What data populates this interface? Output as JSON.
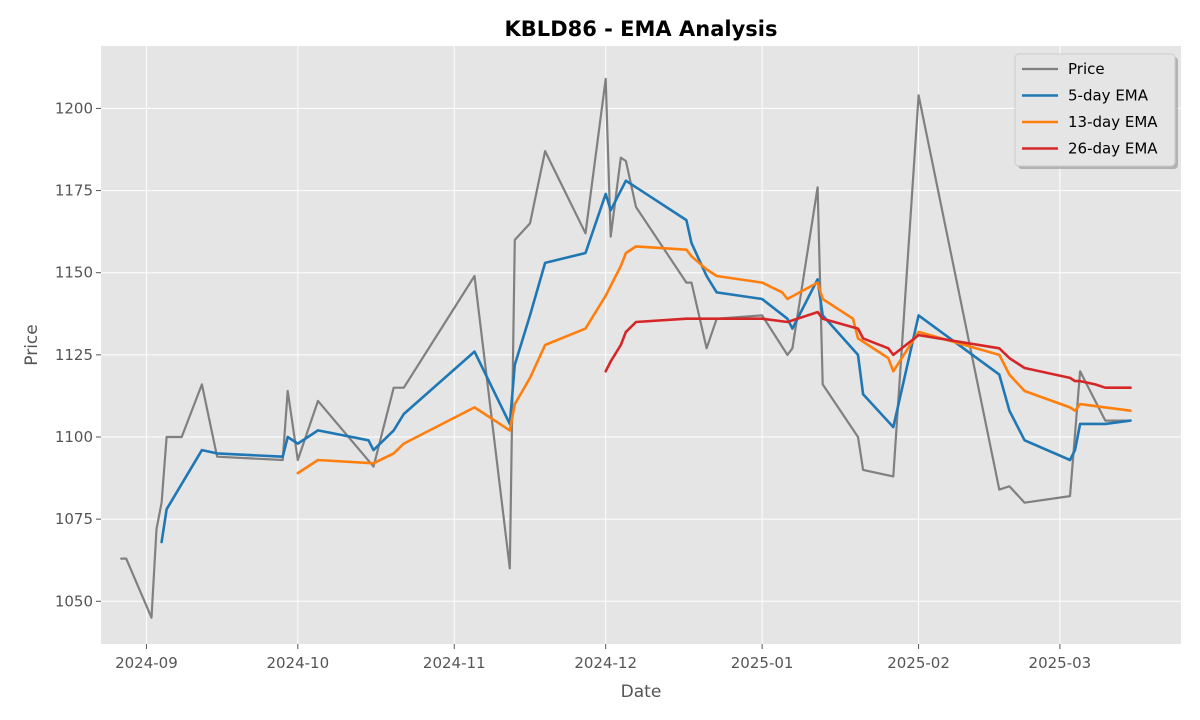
{
  "chart_data": {
    "type": "line",
    "title": "KBLD86 - EMA Analysis",
    "xlabel": "Date",
    "ylabel": "Price",
    "xlim": [
      "2024-08-23",
      "2025-03-25"
    ],
    "ylim": [
      1037,
      1219
    ],
    "x_ticks": [
      {
        "date": "2024-09-01",
        "label": "2024-09"
      },
      {
        "date": "2024-10-01",
        "label": "2024-10"
      },
      {
        "date": "2024-11-01",
        "label": "2024-11"
      },
      {
        "date": "2024-12-01",
        "label": "2024-12"
      },
      {
        "date": "2025-01-01",
        "label": "2025-01"
      },
      {
        "date": "2025-02-01",
        "label": "2025-02"
      },
      {
        "date": "2025-03-01",
        "label": "2025-03"
      }
    ],
    "y_ticks": [
      1050,
      1075,
      1100,
      1125,
      1150,
      1175,
      1200
    ],
    "grid": true,
    "legend_position": "top-right",
    "background": "#e5e5e5",
    "series": [
      {
        "name": "Price",
        "color": "#808080",
        "points": [
          [
            "2024-08-27",
            1063
          ],
          [
            "2024-08-28",
            1063
          ],
          [
            "2024-09-02",
            1045
          ],
          [
            "2024-09-03",
            1072
          ],
          [
            "2024-09-04",
            1080
          ],
          [
            "2024-09-05",
            1100
          ],
          [
            "2024-09-08",
            1100
          ],
          [
            "2024-09-12",
            1116
          ],
          [
            "2024-09-15",
            1094
          ],
          [
            "2024-09-28",
            1093
          ],
          [
            "2024-09-29",
            1114
          ],
          [
            "2024-10-01",
            1093
          ],
          [
            "2024-10-05",
            1111
          ],
          [
            "2024-10-16",
            1091
          ],
          [
            "2024-10-20",
            1115
          ],
          [
            "2024-10-22",
            1115
          ],
          [
            "2024-11-05",
            1149
          ],
          [
            "2024-11-12",
            1060
          ],
          [
            "2024-11-13",
            1160
          ],
          [
            "2024-11-16",
            1165
          ],
          [
            "2024-11-19",
            1187
          ],
          [
            "2024-11-27",
            1162
          ],
          [
            "2024-12-01",
            1209
          ],
          [
            "2024-12-02",
            1161
          ],
          [
            "2024-12-04",
            1185
          ],
          [
            "2024-12-05",
            1184
          ],
          [
            "2024-12-07",
            1170
          ],
          [
            "2024-12-17",
            1147
          ],
          [
            "2024-12-18",
            1147
          ],
          [
            "2024-12-21",
            1127
          ],
          [
            "2024-12-23",
            1136
          ],
          [
            "2025-01-01",
            1137
          ],
          [
            "2025-01-06",
            1125
          ],
          [
            "2025-01-07",
            1127
          ],
          [
            "2025-01-12",
            1176
          ],
          [
            "2025-01-13",
            1116
          ],
          [
            "2025-01-20",
            1100
          ],
          [
            "2025-01-21",
            1090
          ],
          [
            "2025-01-27",
            1088
          ],
          [
            "2025-02-01",
            1204
          ],
          [
            "2025-02-17",
            1084
          ],
          [
            "2025-02-19",
            1085
          ],
          [
            "2025-02-22",
            1080
          ],
          [
            "2025-03-03",
            1082
          ],
          [
            "2025-03-05",
            1120
          ],
          [
            "2025-03-10",
            1105
          ],
          [
            "2025-03-15",
            1105
          ]
        ]
      },
      {
        "name": "5-day EMA",
        "color": "#1f77b4",
        "points": [
          [
            "2024-09-04",
            1068
          ],
          [
            "2024-09-05",
            1078
          ],
          [
            "2024-09-12",
            1096
          ],
          [
            "2024-09-15",
            1095
          ],
          [
            "2024-09-28",
            1094
          ],
          [
            "2024-09-29",
            1100
          ],
          [
            "2024-10-01",
            1098
          ],
          [
            "2024-10-05",
            1102
          ],
          [
            "2024-10-15",
            1099
          ],
          [
            "2024-10-16",
            1096
          ],
          [
            "2024-10-20",
            1102
          ],
          [
            "2024-10-22",
            1107
          ],
          [
            "2024-11-05",
            1126
          ],
          [
            "2024-11-12",
            1104
          ],
          [
            "2024-11-13",
            1122
          ],
          [
            "2024-11-16",
            1137
          ],
          [
            "2024-11-19",
            1153
          ],
          [
            "2024-11-27",
            1156
          ],
          [
            "2024-12-01",
            1174
          ],
          [
            "2024-12-02",
            1169
          ],
          [
            "2024-12-05",
            1178
          ],
          [
            "2024-12-17",
            1166
          ],
          [
            "2024-12-18",
            1159
          ],
          [
            "2024-12-21",
            1149
          ],
          [
            "2024-12-23",
            1144
          ],
          [
            "2025-01-01",
            1142
          ],
          [
            "2025-01-06",
            1136
          ],
          [
            "2025-01-07",
            1133
          ],
          [
            "2025-01-12",
            1148
          ],
          [
            "2025-01-13",
            1137
          ],
          [
            "2025-01-20",
            1125
          ],
          [
            "2025-01-21",
            1113
          ],
          [
            "2025-01-27",
            1103
          ],
          [
            "2025-02-01",
            1137
          ],
          [
            "2025-02-17",
            1119
          ],
          [
            "2025-02-19",
            1108
          ],
          [
            "2025-02-22",
            1099
          ],
          [
            "2025-03-03",
            1093
          ],
          [
            "2025-03-04",
            1096
          ],
          [
            "2025-03-05",
            1104
          ],
          [
            "2025-03-10",
            1104
          ],
          [
            "2025-03-15",
            1105
          ]
        ]
      },
      {
        "name": "13-day EMA",
        "color": "#ff7f0e",
        "points": [
          [
            "2024-10-01",
            1089
          ],
          [
            "2024-10-05",
            1093
          ],
          [
            "2024-10-16",
            1092
          ],
          [
            "2024-10-20",
            1095
          ],
          [
            "2024-10-22",
            1098
          ],
          [
            "2024-11-05",
            1109
          ],
          [
            "2024-11-12",
            1102
          ],
          [
            "2024-11-13",
            1110
          ],
          [
            "2024-11-16",
            1118
          ],
          [
            "2024-11-19",
            1128
          ],
          [
            "2024-11-27",
            1133
          ],
          [
            "2024-12-01",
            1143
          ],
          [
            "2024-12-02",
            1146
          ],
          [
            "2024-12-04",
            1152
          ],
          [
            "2024-12-05",
            1156
          ],
          [
            "2024-12-07",
            1158
          ],
          [
            "2024-12-17",
            1157
          ],
          [
            "2024-12-18",
            1155
          ],
          [
            "2024-12-21",
            1151
          ],
          [
            "2024-12-23",
            1149
          ],
          [
            "2025-01-01",
            1147
          ],
          [
            "2025-01-05",
            1144
          ],
          [
            "2025-01-06",
            1142
          ],
          [
            "2025-01-12",
            1147
          ],
          [
            "2025-01-13",
            1142
          ],
          [
            "2025-01-19",
            1136
          ],
          [
            "2025-01-20",
            1130
          ],
          [
            "2025-01-26",
            1124
          ],
          [
            "2025-01-27",
            1120
          ],
          [
            "2025-02-01",
            1132
          ],
          [
            "2025-02-17",
            1125
          ],
          [
            "2025-02-19",
            1119
          ],
          [
            "2025-02-22",
            1114
          ],
          [
            "2025-03-03",
            1109
          ],
          [
            "2025-03-04",
            1108
          ],
          [
            "2025-03-05",
            1110
          ],
          [
            "2025-03-10",
            1109
          ],
          [
            "2025-03-15",
            1108
          ]
        ]
      },
      {
        "name": "26-day EMA",
        "color": "#d62728",
        "points": [
          [
            "2024-12-01",
            1120
          ],
          [
            "2024-12-02",
            1123
          ],
          [
            "2024-12-04",
            1128
          ],
          [
            "2024-12-05",
            1132
          ],
          [
            "2024-12-07",
            1135
          ],
          [
            "2024-12-17",
            1136
          ],
          [
            "2024-12-18",
            1136
          ],
          [
            "2024-12-21",
            1136
          ],
          [
            "2025-01-01",
            1136
          ],
          [
            "2025-01-06",
            1135
          ],
          [
            "2025-01-12",
            1138
          ],
          [
            "2025-01-13",
            1136
          ],
          [
            "2025-01-20",
            1133
          ],
          [
            "2025-01-21",
            1130
          ],
          [
            "2025-01-26",
            1127
          ],
          [
            "2025-01-27",
            1125
          ],
          [
            "2025-02-01",
            1131
          ],
          [
            "2025-02-17",
            1127
          ],
          [
            "2025-02-19",
            1124
          ],
          [
            "2025-02-22",
            1121
          ],
          [
            "2025-03-03",
            1118
          ],
          [
            "2025-03-04",
            1117
          ],
          [
            "2025-03-05",
            1117
          ],
          [
            "2025-03-08",
            1116
          ],
          [
            "2025-03-10",
            1115
          ],
          [
            "2025-03-15",
            1115
          ]
        ]
      }
    ]
  }
}
